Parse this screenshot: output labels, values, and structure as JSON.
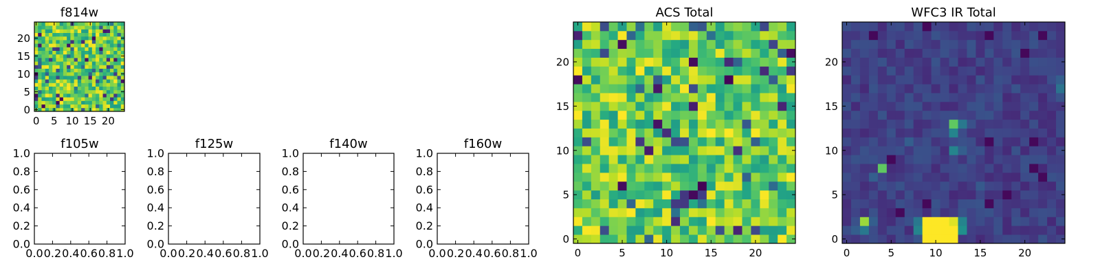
{
  "figure": {
    "background": "#ffffff"
  },
  "chart_data": [
    {
      "type": "heatmap",
      "title": "f814w",
      "xlim": [
        -0.5,
        24.5
      ],
      "ylim": [
        -0.5,
        24.5
      ],
      "x_ticks": [
        0,
        5,
        10,
        15,
        20
      ],
      "y_ticks": [
        0,
        5,
        10,
        15,
        20
      ],
      "grid_size": [
        25,
        25
      ],
      "colormap": "viridis",
      "description_pattern": "random noise, mostly yellow-green with scattered darker pixels",
      "seed": 814
    },
    {
      "type": "empty",
      "title": "f105w",
      "xlim": [
        0,
        1
      ],
      "ylim": [
        0,
        1
      ],
      "x_ticks": [
        "0.0",
        "0.2",
        "0.4",
        "0.6",
        "0.8",
        "1.0"
      ],
      "y_ticks": [
        "0.0",
        "0.2",
        "0.4",
        "0.6",
        "0.8",
        "1.0"
      ]
    },
    {
      "type": "empty",
      "title": "f125w",
      "xlim": [
        0,
        1
      ],
      "ylim": [
        0,
        1
      ],
      "x_ticks": [
        "0.0",
        "0.2",
        "0.4",
        "0.6",
        "0.8",
        "1.0"
      ],
      "y_ticks": [
        "0.0",
        "0.2",
        "0.4",
        "0.6",
        "0.8",
        "1.0"
      ]
    },
    {
      "type": "empty",
      "title": "f140w",
      "xlim": [
        0,
        1
      ],
      "ylim": [
        0,
        1
      ],
      "x_ticks": [
        "0.0",
        "0.2",
        "0.4",
        "0.6",
        "0.8",
        "1.0"
      ],
      "y_ticks": [
        "0.0",
        "0.2",
        "0.4",
        "0.6",
        "0.8",
        "1.0"
      ]
    },
    {
      "type": "empty",
      "title": "f160w",
      "xlim": [
        0,
        1
      ],
      "ylim": [
        0,
        1
      ],
      "x_ticks": [
        "0.0",
        "0.2",
        "0.4",
        "0.6",
        "0.8",
        "1.0"
      ],
      "y_ticks": [
        "0.0",
        "0.2",
        "0.4",
        "0.6",
        "0.8",
        "1.0"
      ]
    },
    {
      "type": "heatmap",
      "title": "ACS Total",
      "xlim": [
        -0.5,
        24.5
      ],
      "ylim": [
        -0.5,
        24.5
      ],
      "x_ticks": [
        0,
        5,
        10,
        15,
        20
      ],
      "y_ticks": [
        0,
        5,
        10,
        15,
        20
      ],
      "grid_size": [
        25,
        25
      ],
      "colormap": "viridis",
      "seed": 1234
    },
    {
      "type": "heatmap",
      "title": "WFC3 IR Total",
      "xlim": [
        -0.5,
        24.5
      ],
      "ylim": [
        -0.5,
        24.5
      ],
      "x_ticks": [
        0,
        5,
        10,
        15,
        20
      ],
      "y_ticks": [
        0,
        5,
        10,
        15,
        20
      ],
      "grid_size": [
        25,
        25
      ],
      "colormap": "viridis",
      "background_level": 0.12,
      "bright_pixels": [
        {
          "x": 9,
          "y": 0,
          "v": 1.0
        },
        {
          "x": 10,
          "y": 0,
          "v": 1.0
        },
        {
          "x": 11,
          "y": 0,
          "v": 1.0
        },
        {
          "x": 12,
          "y": 0,
          "v": 1.0
        },
        {
          "x": 9,
          "y": 1,
          "v": 1.0
        },
        {
          "x": 10,
          "y": 1,
          "v": 1.0
        },
        {
          "x": 11,
          "y": 1,
          "v": 1.0
        },
        {
          "x": 12,
          "y": 1,
          "v": 1.0
        },
        {
          "x": 9,
          "y": 2,
          "v": 1.0
        },
        {
          "x": 10,
          "y": 2,
          "v": 1.0
        },
        {
          "x": 11,
          "y": 2,
          "v": 1.0
        },
        {
          "x": 12,
          "y": 2,
          "v": 0.95
        },
        {
          "x": 8,
          "y": 1,
          "v": 0.45
        },
        {
          "x": 13,
          "y": 1,
          "v": 0.5
        },
        {
          "x": 8,
          "y": 2,
          "v": 0.4
        },
        {
          "x": 13,
          "y": 2,
          "v": 0.45
        },
        {
          "x": 2,
          "y": 2,
          "v": 0.85
        },
        {
          "x": 1,
          "y": 1,
          "v": 0.3
        },
        {
          "x": 2,
          "y": 1,
          "v": 0.4
        },
        {
          "x": 3,
          "y": 2,
          "v": 0.3
        },
        {
          "x": 1,
          "y": 2,
          "v": 0.25
        },
        {
          "x": 4,
          "y": 8,
          "v": 0.75
        },
        {
          "x": 3,
          "y": 7,
          "v": 0.3
        },
        {
          "x": 12,
          "y": 13,
          "v": 0.75
        },
        {
          "x": 12,
          "y": 12,
          "v": 0.45
        },
        {
          "x": 13,
          "y": 13,
          "v": 0.4
        },
        {
          "x": 12,
          "y": 10,
          "v": 0.45
        },
        {
          "x": 13,
          "y": 10,
          "v": 0.3
        },
        {
          "x": 24,
          "y": 17,
          "v": 0.38
        },
        {
          "x": 24,
          "y": 18,
          "v": 0.3
        },
        {
          "x": 7,
          "y": 11,
          "v": 0.3
        },
        {
          "x": 15,
          "y": 6,
          "v": 0.28
        },
        {
          "x": 20,
          "y": 8,
          "v": 0.25
        }
      ],
      "dark_pixels": [
        {
          "x": 9,
          "y": 24
        },
        {
          "x": 5,
          "y": 9
        },
        {
          "x": 16,
          "y": 11
        },
        {
          "x": 21,
          "y": 8
        },
        {
          "x": 22,
          "y": 7
        },
        {
          "x": 16,
          "y": 23
        },
        {
          "x": 20,
          "y": 21
        },
        {
          "x": 22,
          "y": 23
        },
        {
          "x": 9,
          "y": 4
        },
        {
          "x": 16,
          "y": 4
        },
        {
          "x": 18,
          "y": 5
        },
        {
          "x": 21,
          "y": 11
        },
        {
          "x": 3,
          "y": 23
        },
        {
          "x": 6,
          "y": 3
        }
      ],
      "seed": 5678
    }
  ]
}
